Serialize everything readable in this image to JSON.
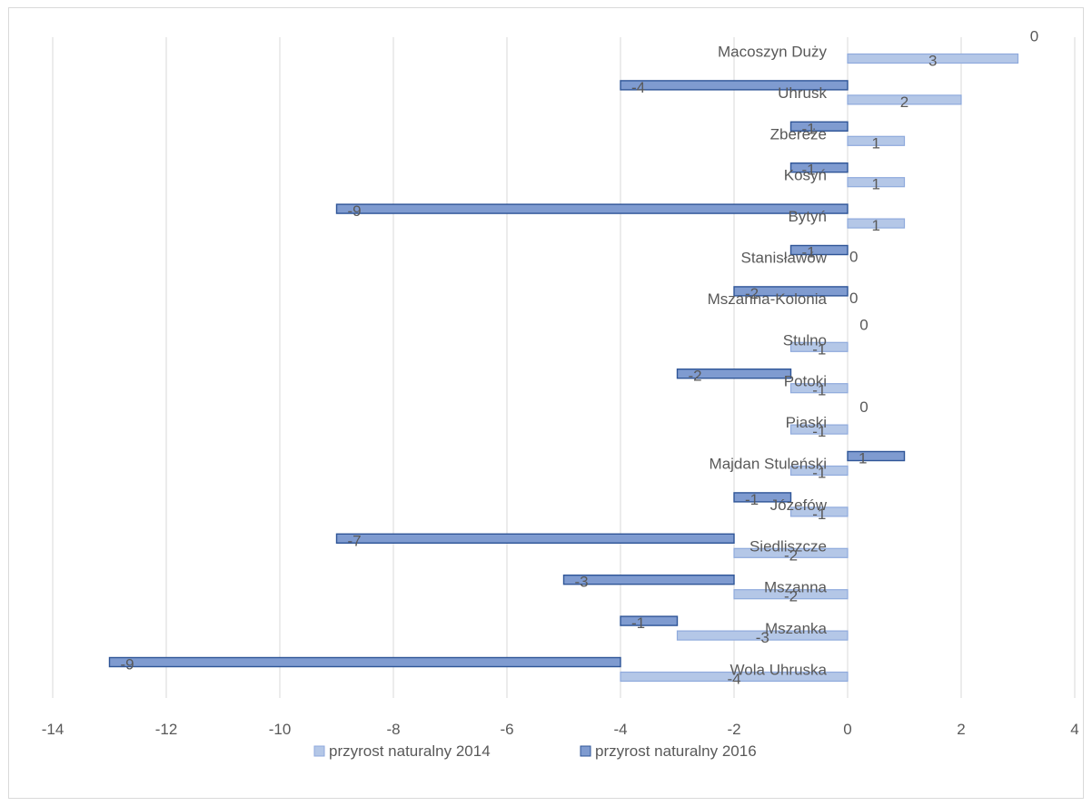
{
  "chart_data": {
    "type": "bar",
    "orientation": "horizontal",
    "stacked": true,
    "categories": [
      "Macoszyn Duży",
      "Uhrusk",
      "Zbereże",
      "Kosyń",
      "Bytyń",
      "Stanisławów",
      "Mszanna-Kolonia",
      "Stulno",
      "Potoki",
      "Piaski",
      "Majdan Stuleński",
      "Józefów",
      "Siedliszcze",
      "Mszanna",
      "Mszanka",
      "Wola Uhruska"
    ],
    "series": [
      {
        "name": "przyrost naturalny 2014",
        "values": [
          3,
          2,
          1,
          1,
          1,
          0,
          0,
          -1,
          -1,
          -1,
          -1,
          -1,
          -2,
          -2,
          -3,
          -4
        ],
        "color": "#b4c7e7",
        "stroke": "#8faadc"
      },
      {
        "name": "przyrost naturalny 2016",
        "values": [
          0,
          -4,
          -1,
          -1,
          -9,
          -1,
          -2,
          0,
          -2,
          0,
          1,
          -1,
          -7,
          -3,
          -1,
          -9
        ],
        "color": "#7f9bd0",
        "stroke": "#2f5597"
      }
    ],
    "xlim": [
      -14,
      4
    ],
    "xticks": [
      "-14",
      "-12",
      "-10",
      "-8",
      "-6",
      "-4",
      "-2",
      "0",
      "2",
      "4"
    ],
    "grid": true,
    "legend": "bottom"
  }
}
